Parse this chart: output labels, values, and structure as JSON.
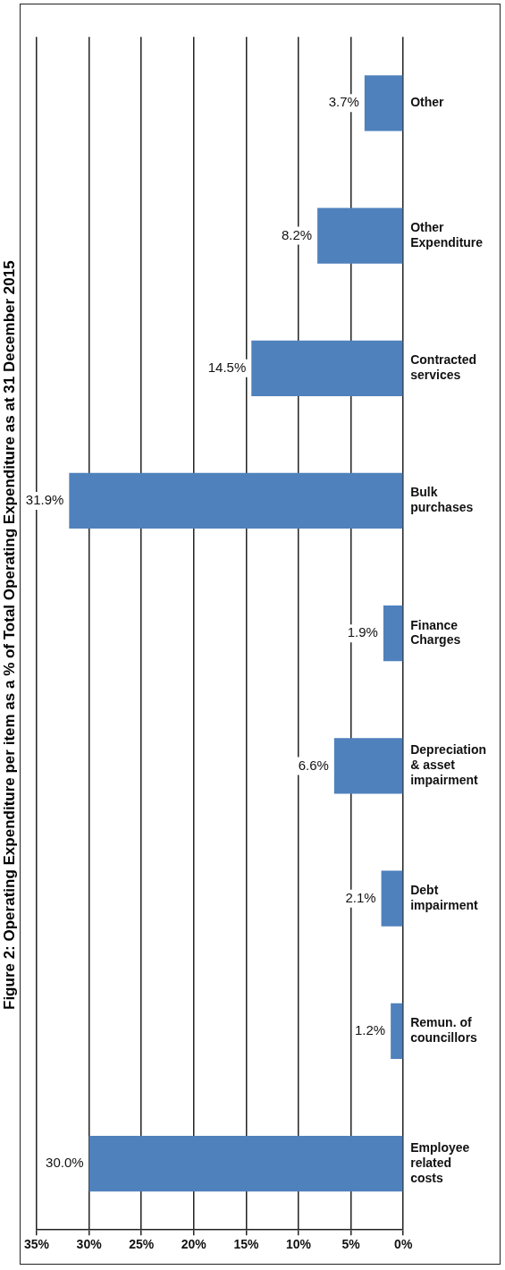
{
  "chart_data": {
    "type": "bar",
    "orientation": "horizontal",
    "title": "Figure 2: Operating Expenditure per item as a % of Total Operating Expenditure as at 31 December 2015",
    "categories": [
      "Other",
      "Other Expenditure",
      "Contracted services",
      "Bulk purchases",
      "Finance Charges",
      "Depreciation & asset impairment",
      "Debt impairment",
      "Remun. of councillors",
      "Employee related costs"
    ],
    "values": [
      3.7,
      8.2,
      14.5,
      31.9,
      1.9,
      6.6,
      2.1,
      1.2,
      30.0
    ],
    "value_labels": [
      "3.7%",
      "8.2%",
      "14.5%",
      "31.9%",
      "1.9%",
      "6.6%",
      "2.1%",
      "1.2%",
      "30.0%"
    ],
    "color": "#4f81bd",
    "xlim": [
      35,
      0
    ],
    "xticks": [
      {
        "value": 35,
        "label": "35%"
      },
      {
        "value": 30,
        "label": "30%"
      },
      {
        "value": 25,
        "label": "25%"
      },
      {
        "value": 20,
        "label": "20%"
      },
      {
        "value": 15,
        "label": "15%"
      },
      {
        "value": 10,
        "label": "10%"
      },
      {
        "value": 5,
        "label": "5%"
      },
      {
        "value": 0,
        "label": "0%"
      }
    ],
    "grid": "x"
  }
}
